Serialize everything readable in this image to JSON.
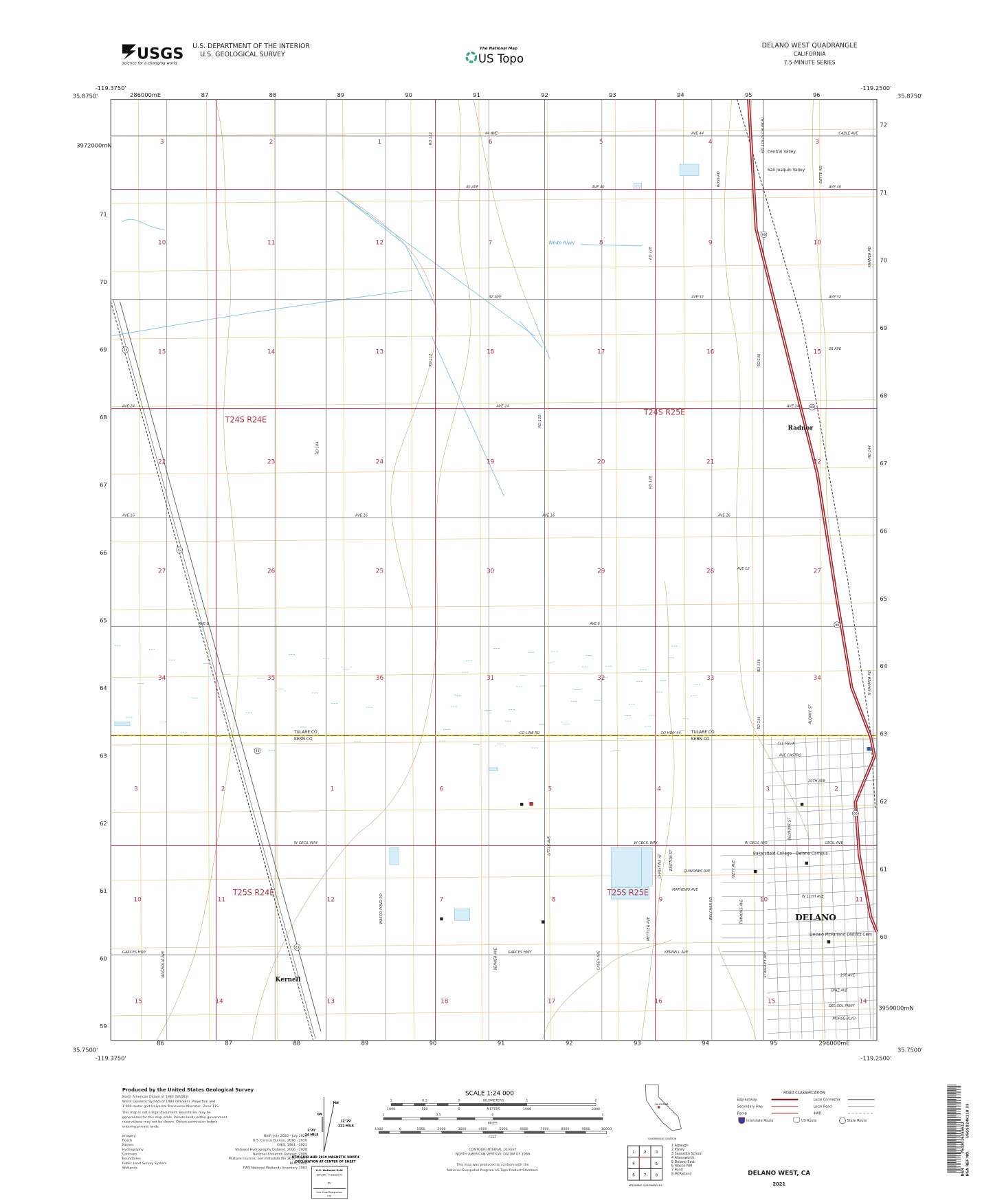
{
  "header": {
    "agency_logo": "USGS",
    "agency_tagline": "science for a changing world",
    "dept_line1": "U.S. DEPARTMENT OF THE INTERIOR",
    "dept_line2": "U.S. GEOLOGICAL SURVEY",
    "national_map_small": "The National Map",
    "national_map_big": "US Topo",
    "quad_title": "DELANO WEST QUADRANGLE",
    "state": "CALIFORNIA",
    "series": "7.5-MINUTE SERIES"
  },
  "frame": {
    "lon_west": "-119.3750'",
    "lon_east": "-119.2500'",
    "lat_north": "35.8750'",
    "lat_south": "35.7500'",
    "easting_first_top": "286000mE",
    "easting_top": [
      "87",
      "88",
      "89",
      "90",
      "91",
      "92",
      "93",
      "94",
      "95",
      "96"
    ],
    "easting_bottom": [
      "86",
      "87",
      "88",
      "89",
      "90",
      "91",
      "92",
      "93",
      "94",
      "95"
    ],
    "easting_last_bottom": "296000mE",
    "northing_first_left": "3972000mN",
    "northing_left": [
      "71",
      "70",
      "69",
      "68",
      "67",
      "66",
      "65",
      "64",
      "63",
      "62",
      "61",
      "60",
      "59"
    ],
    "northing_right": [
      "72",
      "71",
      "70",
      "69",
      "68",
      "67",
      "66",
      "65",
      "64",
      "63",
      "62",
      "61",
      "60"
    ],
    "northing_last_right": "3959000mN"
  },
  "sections": [
    [
      "3",
      "2",
      "1",
      "6",
      "5",
      "4",
      "3"
    ],
    [
      "10",
      "11",
      "12",
      "7",
      "8",
      "9",
      "10"
    ],
    [
      "15",
      "14",
      "13",
      "18",
      "17",
      "16",
      "15"
    ],
    [
      "22",
      "23",
      "24",
      "19",
      "20",
      "21",
      "22"
    ],
    [
      "27",
      "26",
      "25",
      "30",
      "29",
      "28",
      "27"
    ],
    [
      "34",
      "35",
      "36",
      "31",
      "32",
      "33",
      "34"
    ],
    [
      "3",
      "2",
      "1",
      "6",
      "5",
      "4",
      "3",
      "2"
    ],
    [
      "10",
      "11",
      "12",
      "7",
      "8",
      "9",
      "10",
      "11"
    ],
    [
      "15",
      "14",
      "13",
      "18",
      "17",
      "16",
      "15",
      "14"
    ]
  ],
  "townships": [
    "T24S R24E",
    "T24S R25E",
    "T25S R24E",
    "T25S R25E"
  ],
  "places": {
    "radnor": "Radnor",
    "kernell": "Kernell",
    "delano": "DELANO",
    "college": "Bakersfield College - Delano Campus",
    "hospital": "Delano McFarland District Cem",
    "central_valley": "Central Valley",
    "sjv": "San Joaquin Valley",
    "white_river": "White River",
    "tulare_co": "TULARE CO",
    "kern_co": "KERN CO"
  },
  "roads": [
    "44 AVE",
    "AVE 44",
    "CABLE AVE",
    "40 AVE",
    "AVE 40",
    "AVE 40",
    "32 AVE",
    "AVE 32",
    "AVE 32",
    "28 AVE",
    "AVE 24",
    "AVE 24",
    "AVE 24",
    "AVE 16",
    "AVE 16",
    "AVE 16",
    "AVE 16",
    "AVE 12",
    "AVE 8",
    "AVE 8",
    "CO LINE RD",
    "CO HWY 44",
    "W CECIL WAY",
    "W CECIL WAY",
    "W CECIL AVE",
    "CECIL AVE",
    "GARCES HWY",
    "GARCES HWY",
    "KERNELL AVE",
    "QUINONES AVE",
    "MATHEWS AVE",
    "CLL FELIX",
    "AVE CASTRO",
    "20TH AVE",
    "RD 112",
    "RD 112",
    "RD 104",
    "RD 120",
    "RD 128",
    "RD 128",
    "RD 136",
    "RD 136",
    "RD 136",
    "RD 144",
    "MAGNOLIA AVE",
    "WASCO POND RD",
    "BEHNER AVE",
    "LITTLE AVE",
    "CASEY AVE",
    "BRITTON ST",
    "HIETT AVE",
    "TIMMONS AVE",
    "ALBANY ST",
    "N KRAMER RD",
    "KRAMER RD",
    "DETTE RD",
    "ROSS RD",
    "RD 116 (S CHURCH)",
    "MORSE BLVD",
    "DIAZ AVE",
    "DEL SOL PKWY",
    "1ST AVE",
    "W 11TH AVE",
    "BELMONT ST",
    "STRADLEY AVE",
    "METTLER AVE",
    "WELCHER RD",
    "CHRISTINA ST"
  ],
  "route_shields": [
    "99",
    "99",
    "99",
    "43",
    "43",
    "43",
    "43",
    "99"
  ],
  "credits": {
    "title": "Produced by the United States Geological Survey",
    "lines": [
      "North American Datum of 1983 (NAD83)",
      "World Geodetic System of 1984 (WGS84).  Projection and",
      "1 000-meter grid:Universal Transverse Mercator, Zone 11S",
      "This map is not a legal document. Boundaries may be",
      "generalized for this map scale. Private lands within government",
      "reservations may not be shown. Obtain permission before",
      "entering private lands."
    ],
    "sources": [
      [
        "Imagery",
        "NAIP, July 2020 - July 2020"
      ],
      [
        "Roads",
        "U.S. Census Bureau, 2016 - 2016"
      ],
      [
        "Names",
        "GNIS, 1981 - 2021"
      ],
      [
        "Hydrography",
        "National Hydrography Dataset, 2006 - 2020"
      ],
      [
        "Contours",
        "National Elevation Dataset, 2009"
      ],
      [
        "Boundaries",
        "Multiple sources; see metadata file 2019 - 2021"
      ],
      [
        "Public Land Survey System",
        "BLM, 2020"
      ],
      [
        "Wetlands",
        "FWS National Wetlands Inventory 1987"
      ]
    ]
  },
  "declination": {
    "gn": "GN",
    "mn": "MN",
    "grid_angle": "1°21'",
    "grid_mils": "24 MILS",
    "mag_angle": "12°29'",
    "mag_mils": "222 MILS",
    "caption1": "UTM GRID AND 2019 MAGNETIC NORTH",
    "caption2": "DECLINATION AT CENTER OF SHEET",
    "usng_title": "U.S. National Grid",
    "usng_sub": "100,000 - m Square ID",
    "usng_id": "KV",
    "gzd_label": "Grid Zone Designation",
    "gzd": "11S"
  },
  "scale": {
    "title": "SCALE 1:24 000",
    "km_labels": [
      "1",
      "0.5",
      "0",
      "1",
      "2"
    ],
    "km_unit": "KILOMETERS",
    "m_labels": [
      "1000",
      "500",
      "0",
      "1000",
      "2000"
    ],
    "m_unit": "METERS",
    "mi_labels": [
      "1",
      "0.5",
      "0",
      "1"
    ],
    "mi_unit": "MILES",
    "ft_labels": [
      "1000",
      "0",
      "1000",
      "2000",
      "3000",
      "4000",
      "5000",
      "6000",
      "7000",
      "8000",
      "9000",
      "10000"
    ],
    "ft_unit": "FEET",
    "contour1": "CONTOUR INTERVAL 10 FEET",
    "contour2": "NORTH AMERICAN VERTICAL DATUM OF 1988",
    "standard1": "This map was produced to conform with the",
    "standard2": "National Geospatial Program US Topo Product Standard."
  },
  "location": {
    "state_label": "CALIFORNIA",
    "caption": "QUADRANGLE LOCATION"
  },
  "adjoining": {
    "cells": [
      "1",
      "2",
      "3",
      "4",
      "",
      "5",
      "6",
      "7",
      "8"
    ],
    "names": [
      "1 Alpaugh",
      "2 Pixley",
      "3 Sausalito School",
      "4 Allensworth",
      "5 Delano East",
      "6 Wasco NW",
      "7 Pond",
      "8 McFarland"
    ],
    "caption": "ADJOINING QUADRANGLES"
  },
  "legend": {
    "title": "ROAD CLASSIFICATION",
    "items": [
      {
        "label": "Expressway",
        "color": "#8b1a1a"
      },
      {
        "label": "Secondary Hwy",
        "color": "#c0392b"
      },
      {
        "label": "Ramp",
        "color": "#c0392b"
      },
      {
        "label": "Local Connector",
        "color": "#555555"
      },
      {
        "label": "Local Road",
        "color": "#999999"
      },
      {
        "label": "4WD",
        "color": "#aaaaaa"
      }
    ],
    "shields": [
      "Interstate Route",
      "US Route",
      "State Route"
    ]
  },
  "footer": {
    "name": "DELANO WEST, CA",
    "year": "2021"
  },
  "barcode": {
    "nsn_label": "NSN",
    "nsn": "7643016355612",
    "ref_label": "NGA REF NO.",
    "ref": "USGSX24K118 33"
  },
  "colors": {
    "grid": "#e8cf8f",
    "road": "#8a8a8a",
    "section_road": "#b0334a",
    "highway": "#a8262c",
    "water": "#7ec3e8",
    "county_line": "#c8b400",
    "contour": "#c9b48e"
  }
}
